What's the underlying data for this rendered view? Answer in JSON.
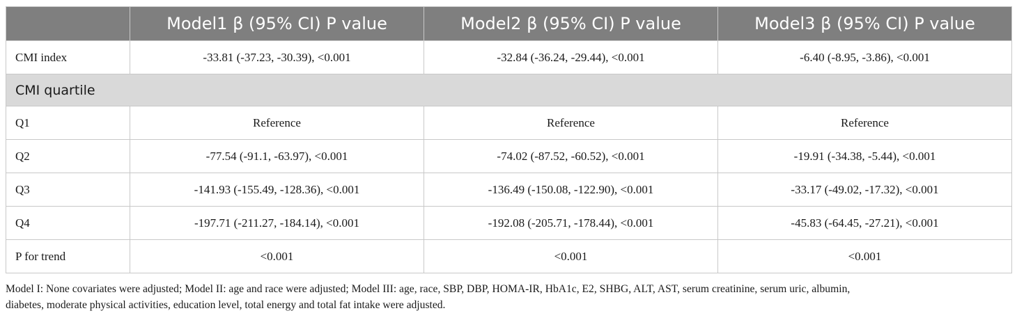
{
  "table": {
    "headers": [
      "",
      "Model1 β (95% CI) P value",
      "Model2 β (95% CI) P value",
      "Model3 β (95% CI) P value"
    ],
    "rows": [
      {
        "label": "CMI index",
        "values": [
          "-33.81 (-37.23, -30.39), <0.001",
          "-32.84 (-36.24, -29.44), <0.001",
          "-6.40 (-8.95, -3.86), <0.001"
        ]
      },
      {
        "section": "CMI quartile"
      },
      {
        "label": "Q1",
        "values": [
          "Reference",
          "Reference",
          "Reference"
        ]
      },
      {
        "label": "Q2",
        "values": [
          "-77.54 (-91.1, -63.97), <0.001",
          "-74.02 (-87.52, -60.52), <0.001",
          "-19.91 (-34.38, -5.44), <0.001"
        ]
      },
      {
        "label": "Q3",
        "values": [
          "-141.93 (-155.49, -128.36), <0.001",
          "-136.49 (-150.08, -122.90), <0.001",
          "-33.17 (-49.02, -17.32), <0.001"
        ]
      },
      {
        "label": "Q4",
        "values": [
          "-197.71 (-211.27, -184.14), <0.001",
          "-192.08 (-205.71, -178.44), <0.001",
          "-45.83 (-64.45, -27.21), <0.001"
        ]
      },
      {
        "label": "P for trend",
        "values": [
          "<0.001",
          "<0.001",
          "<0.001"
        ]
      }
    ]
  },
  "footnote": {
    "line1": "Model I: None covariates were adjusted; Model II: age and race were adjusted; Model III: age, race, SBP, DBP, HOMA-IR, HbA1c, E2, SHBG, ALT, AST, serum creatinine, serum uric, albumin,",
    "line2": "diabetes, moderate physical activities, education level, total energy and total fat intake were adjusted."
  },
  "colors": {
    "header_bg": "#7f7f7f",
    "section_bg": "#d9d9d9",
    "grid": "#c8c8c8"
  }
}
